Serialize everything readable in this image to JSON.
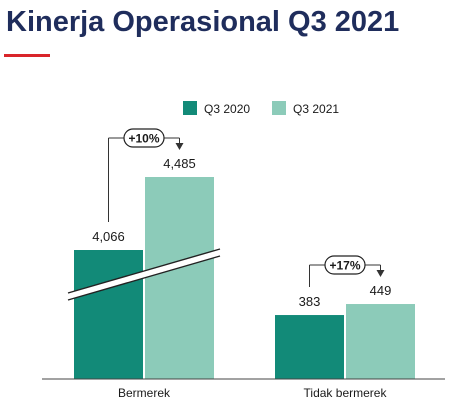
{
  "page": {
    "title": "Kinerja Operasional Q3 2021",
    "accent_color": "#d9252a",
    "title_color": "#1f2d5c"
  },
  "chart_data": {
    "type": "bar",
    "categories": [
      "Bermerek",
      "Tidak bermerek"
    ],
    "series": [
      {
        "name": "Q3 2020",
        "values": [
          4066,
          383
        ],
        "labels": [
          "4,066",
          "383"
        ],
        "color": "#128a78"
      },
      {
        "name": "Q3 2021",
        "values": [
          4485,
          449
        ],
        "labels": [
          "4,485",
          "449"
        ],
        "color": "#8ccbb9"
      }
    ],
    "growth": [
      "+10%",
      "+17%"
    ],
    "legend_position": "top",
    "axis_break": "Bermerek bars",
    "grid": false
  }
}
